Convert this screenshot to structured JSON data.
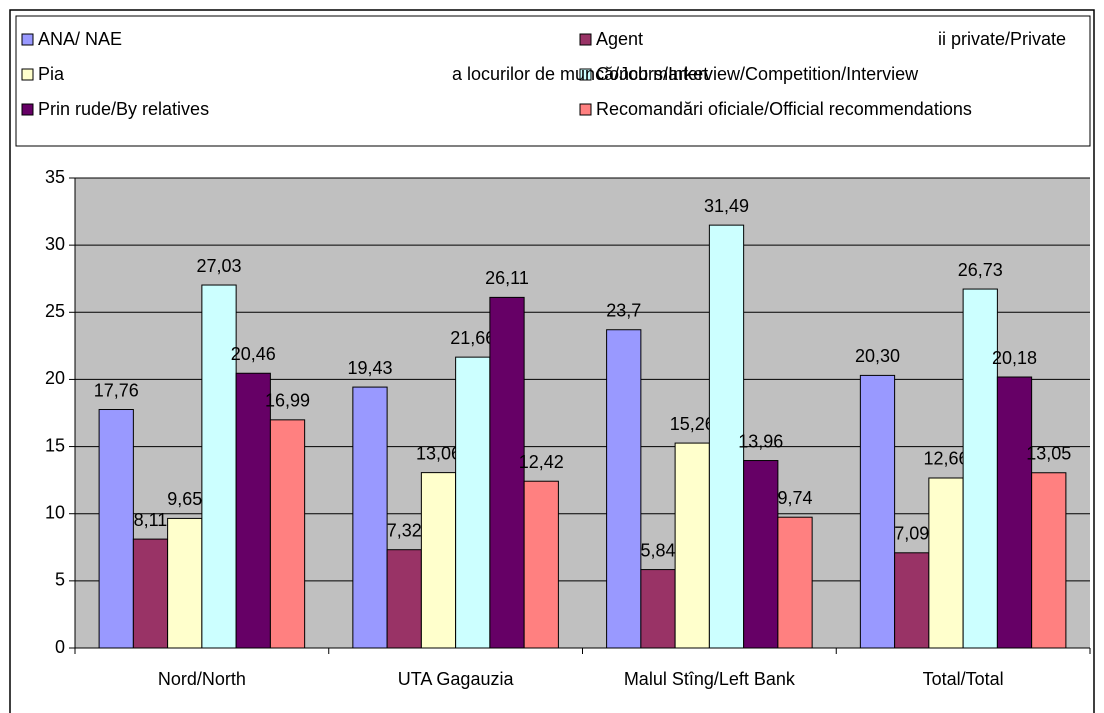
{
  "chart_data": {
    "type": "bar",
    "categories": [
      "Nord/North",
      "UTA Gagauzia",
      "Malul Stîng/Left Bank",
      "Total/Total"
    ],
    "series": [
      {
        "name": "ANA/ NAE",
        "color": "#9999ff",
        "values": [
          17.76,
          19.43,
          23.7,
          20.3
        ],
        "value_labels": [
          "17,76",
          "19,43",
          "23,7",
          "20,30"
        ]
      },
      {
        "name": "Agent",
        "color": "#993366",
        "values": [
          8.11,
          7.32,
          5.84,
          7.09
        ],
        "value_labels": [
          "8,11",
          "7,32",
          "5,84",
          "7,09"
        ]
      },
      {
        "name": "Pia",
        "color": "#ffffcc",
        "values": [
          9.65,
          13.06,
          15.26,
          12.66
        ],
        "value_labels": [
          "9,65",
          "13,06",
          "15,26",
          "12,66"
        ]
      },
      {
        "name": "Concurs/Interview/Competition/Interview",
        "color": "#ccffff",
        "values": [
          27.03,
          21.66,
          31.49,
          26.73
        ],
        "value_labels": [
          "27,03",
          "21,66",
          "31,49",
          "26,73"
        ]
      },
      {
        "name": "Prin rude/By relatives",
        "color": "#660066",
        "values": [
          20.46,
          26.11,
          13.96,
          20.18
        ],
        "value_labels": [
          "20,46",
          "26,11",
          "13,96",
          "20,18"
        ]
      },
      {
        "name": "Recomandări oficiale/Official recommendations",
        "color": "#ff8080",
        "values": [
          16.99,
          12.42,
          9.74,
          13.05
        ],
        "value_labels": [
          "16,99",
          "12,42",
          "9,74",
          "13,05"
        ]
      }
    ],
    "legend_fragments": [
      "ii private/Private",
      "a locurilor de muncă/Job market"
    ],
    "ylim": [
      0,
      35
    ],
    "yticks": [
      0,
      5,
      10,
      15,
      20,
      25,
      30,
      35
    ],
    "grid": true
  }
}
